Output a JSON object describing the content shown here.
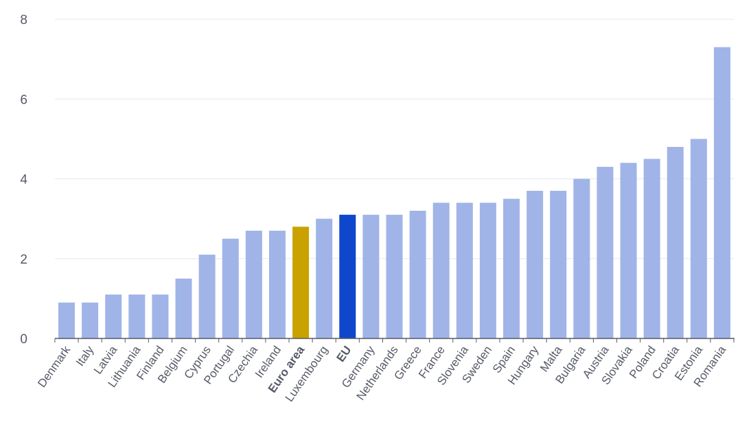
{
  "chart_data": {
    "type": "bar",
    "title": "",
    "xlabel": "",
    "ylabel": "",
    "ylim": [
      0,
      8
    ],
    "yticks": [
      0,
      2,
      4,
      6,
      8
    ],
    "grid": true,
    "categories": [
      "Denmark",
      "Italy",
      "Latvia",
      "Lithuania",
      "Finland",
      "Belgium",
      "Cyprus",
      "Portugal",
      "Czechia",
      "Ireland",
      "Euro area",
      "Luxembourg",
      "EU",
      "Germany",
      "Netherlands",
      "Greece",
      "France",
      "Slovenia",
      "Sweden",
      "Spain",
      "Hungary",
      "Malta",
      "Bulgaria",
      "Austria",
      "Slovakia",
      "Poland",
      "Croatia",
      "Estonia",
      "Romania"
    ],
    "values": [
      0.9,
      0.9,
      1.1,
      1.1,
      1.1,
      1.5,
      2.1,
      2.5,
      2.7,
      2.7,
      2.8,
      3.0,
      3.1,
      3.1,
      3.1,
      3.2,
      3.4,
      3.4,
      3.4,
      3.5,
      3.7,
      3.7,
      4.0,
      4.3,
      4.4,
      4.5,
      4.8,
      5.0,
      7.3
    ],
    "highlight": {
      "Euro area": "#c9a200",
      "EU": "#0e47cb"
    },
    "bold_labels": [
      "Euro area",
      "EU"
    ],
    "colors": {
      "bar": "#a0b4e8",
      "grid": "#e4e7f0",
      "axis": "#555a66",
      "text": "#555a66"
    }
  }
}
